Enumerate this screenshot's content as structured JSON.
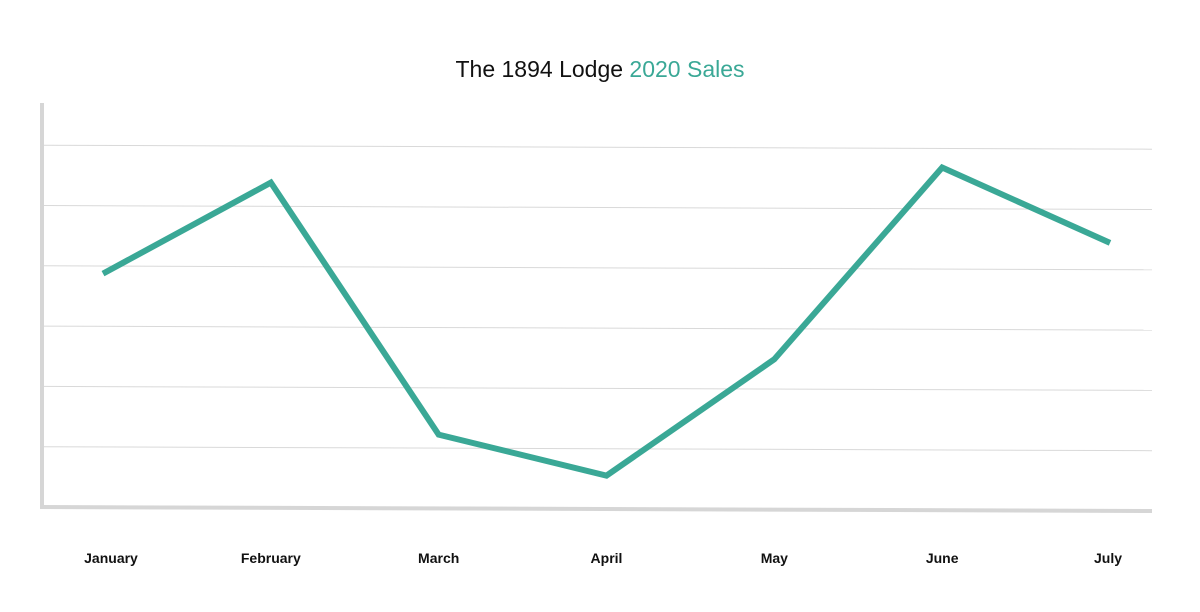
{
  "chart_data": {
    "type": "line",
    "title": "The 1894 Lodge 2020 Sales",
    "title_parts": {
      "main": "The 1894 Lodge",
      "accent": "2020 Sales"
    },
    "categories": [
      "January",
      "February",
      "March",
      "April",
      "May",
      "June",
      "July"
    ],
    "series": [
      {
        "values": [
          3.87,
          5.38,
          1.2,
          0.52,
          2.45,
          5.63,
          4.38
        ],
        "color": "#3aa896"
      }
    ],
    "xlabel": "",
    "ylabel": "",
    "ylim": [
      0,
      6.7
    ],
    "grid": true,
    "y_tick_labels_shown": false,
    "legend": "none",
    "colors": {
      "line": "#3aa896",
      "accent_text": "#3aa896",
      "grid": "#d9d9d9",
      "axis": "#d6d6d6"
    }
  }
}
